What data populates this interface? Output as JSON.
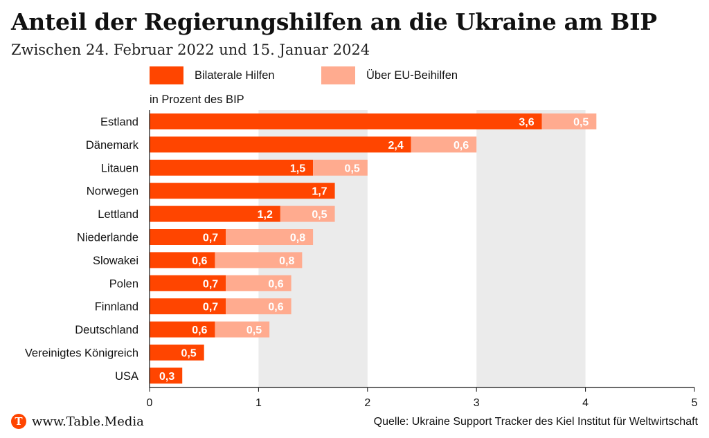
{
  "header": {
    "title": "Anteil der Regierungshilfen an die Ukraine am BIP",
    "subtitle": "Zwischen 24. Februar 2022 und 15. Januar 2024"
  },
  "legend": [
    {
      "label": "Bilaterale Hilfen",
      "color": "#ff4500"
    },
    {
      "label": "Über EU-Beihilfen",
      "color": "#ffab8f"
    }
  ],
  "footer": {
    "logo_letter": "T",
    "site": "www.Table.Media",
    "source": "Quelle: Ukraine Support Tracker des Kiel Institut für Weltwirtschaft"
  },
  "chart_data": {
    "type": "bar",
    "orientation": "horizontal",
    "stacked": true,
    "title": "Anteil der Regierungshilfen an die Ukraine am BIP",
    "subtitle": "Zwischen 24. Februar 2022 und 15. Januar 2024",
    "unit_label": "in Prozent des BIP",
    "categories": [
      "Estland",
      "Dänemark",
      "Litauen",
      "Norwegen",
      "Lettland",
      "Niederlande",
      "Slowakei",
      "Polen",
      "Finnland",
      "Deutschland",
      "Vereinigtes Königreich",
      "USA"
    ],
    "series": [
      {
        "name": "Bilaterale Hilfen",
        "color": "#ff4500",
        "values": [
          3.6,
          2.4,
          1.5,
          1.7,
          1.2,
          0.7,
          0.6,
          0.7,
          0.7,
          0.6,
          0.5,
          0.3
        ]
      },
      {
        "name": "Über EU-Beihilfen",
        "color": "#ffab8f",
        "values": [
          0.5,
          0.6,
          0.5,
          null,
          0.5,
          0.8,
          0.8,
          0.6,
          0.6,
          0.5,
          null,
          null
        ]
      }
    ],
    "xlim": [
      0,
      5
    ],
    "xticks": [
      "0",
      "1",
      "2",
      "3",
      "4",
      "5"
    ],
    "grid": "alternating shaded vertical bands",
    "band_color": "#ebebeb",
    "legend_position": "top"
  }
}
